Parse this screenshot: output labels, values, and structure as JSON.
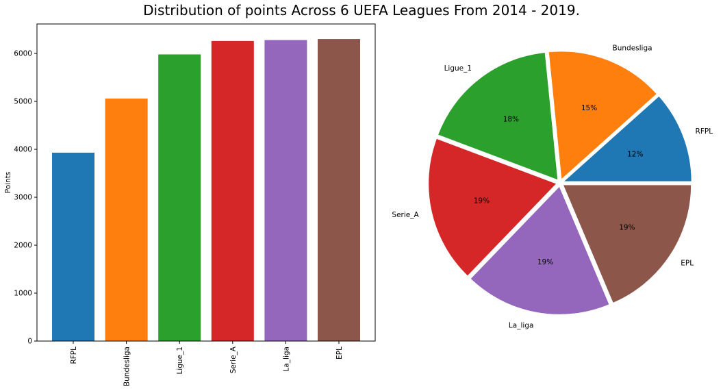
{
  "figure": {
    "title": "Distribution of points Across 6 UEFA Leagues From 2014 - 2019."
  },
  "chart_data": [
    {
      "type": "bar",
      "categories": [
        "RFPL",
        "Bundesliga",
        "Ligue_1",
        "Serie_A",
        "La_liga",
        "EPL"
      ],
      "values": [
        3930,
        5060,
        5980,
        6260,
        6280,
        6300
      ],
      "colors": [
        "#1f77b4",
        "#ff7f0e",
        "#2ca02c",
        "#d62728",
        "#9467bd",
        "#8c564b"
      ],
      "xlabel": "",
      "ylabel": "Points",
      "ylim": [
        0,
        6615
      ],
      "yticks": [
        0,
        1000,
        2000,
        3000,
        4000,
        5000,
        6000
      ],
      "xtick_rotation": "vertical",
      "grid": false
    },
    {
      "type": "pie",
      "labels": [
        "RFPL",
        "Bundesliga",
        "Ligue_1",
        "Serie_A",
        "La_liga",
        "EPL"
      ],
      "values": [
        3930,
        5060,
        5980,
        6260,
        6280,
        6300
      ],
      "percent_labels": [
        "12%",
        "15%",
        "18%",
        "19%",
        "19%",
        "19%"
      ],
      "colors": [
        "#1f77b4",
        "#ff7f0e",
        "#2ca02c",
        "#d62728",
        "#9467bd",
        "#8c564b"
      ],
      "exploded": true,
      "start_angle_deg": 0,
      "direction": "counterclockwise"
    }
  ]
}
